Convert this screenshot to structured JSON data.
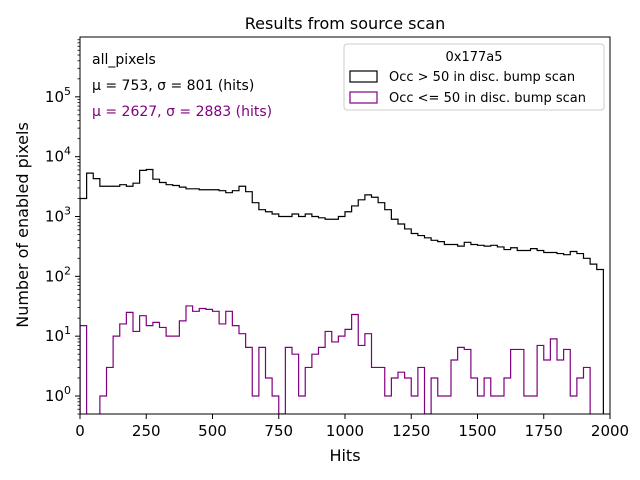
{
  "chart_data": {
    "type": "histogram",
    "title": "Results from source scan",
    "xlabel": "Hits",
    "ylabel": "Number of enabled pixels",
    "xlim": [
      0,
      2000
    ],
    "ylim_log": [
      0.5,
      1000000
    ],
    "yscale": "log",
    "grid": false,
    "bin_width": 25,
    "x_ticks": [
      0,
      250,
      500,
      750,
      1000,
      1250,
      1500,
      1750,
      2000
    ],
    "x_tick_labels": [
      "0",
      "250",
      "500",
      "750",
      "1000",
      "1250",
      "1500",
      "1750",
      "2000"
    ],
    "y_ticks": [
      {
        "value": 1,
        "base": "10",
        "exp": "0"
      },
      {
        "value": 10,
        "base": "10",
        "exp": "1"
      },
      {
        "value": 100,
        "base": "10",
        "exp": "2"
      },
      {
        "value": 1000,
        "base": "10",
        "exp": "3"
      },
      {
        "value": 10000,
        "base": "10",
        "exp": "4"
      },
      {
        "value": 100000,
        "base": "10",
        "exp": "5"
      }
    ],
    "annotations": {
      "label": "all_pixels",
      "stats_main": "μ = 753, σ = 801 (hits)",
      "stats_second": "μ = 2627, σ = 2883 (hits)"
    },
    "legend": {
      "title": "0x177a5",
      "placement": "top-right",
      "entries": [
        "Occ > 50 in disc. bump scan",
        "Occ <= 50 in disc. bump scan"
      ]
    },
    "series": [
      {
        "name": "Occ > 50 in disc. bump scan",
        "color": "#000000",
        "values": [
          2000,
          5300,
          4300,
          3200,
          3200,
          3200,
          3400,
          3200,
          3600,
          5900,
          6100,
          4200,
          3700,
          3400,
          3300,
          3100,
          2900,
          2900,
          2800,
          2800,
          2800,
          2700,
          2500,
          2700,
          3200,
          2600,
          1700,
          1300,
          1200,
          1100,
          1000,
          1000,
          1100,
          1000,
          1100,
          1000,
          950,
          900,
          900,
          1000,
          1200,
          1500,
          1900,
          2300,
          2100,
          1700,
          1300,
          900,
          750,
          620,
          520,
          480,
          440,
          400,
          380,
          340,
          340,
          320,
          370,
          340,
          330,
          320,
          330,
          310,
          280,
          300,
          270,
          270,
          290,
          270,
          250,
          250,
          240,
          230,
          260,
          240,
          200,
          160,
          130
        ]
      },
      {
        "name": "Occ <= 50 in disc. bump scan",
        "color": "#800080",
        "values": [
          15,
          0,
          0,
          1,
          3,
          10,
          16,
          25,
          12,
          22,
          15,
          17,
          14,
          10,
          10,
          18,
          32,
          26,
          29,
          28,
          26,
          16,
          26,
          15,
          11,
          6.5,
          1,
          6.5,
          2,
          1,
          0.5,
          6.5,
          5,
          1,
          3,
          5,
          6.5,
          12,
          8,
          10,
          13,
          23,
          7,
          11,
          3,
          3,
          1,
          2,
          2.5,
          2,
          1,
          3,
          0.5,
          2,
          1,
          1,
          4,
          6.5,
          6,
          2,
          1,
          2,
          1,
          1,
          2,
          6,
          6,
          1,
          1,
          7,
          4,
          9,
          4,
          6,
          1,
          2,
          3
        ]
      }
    ]
  }
}
